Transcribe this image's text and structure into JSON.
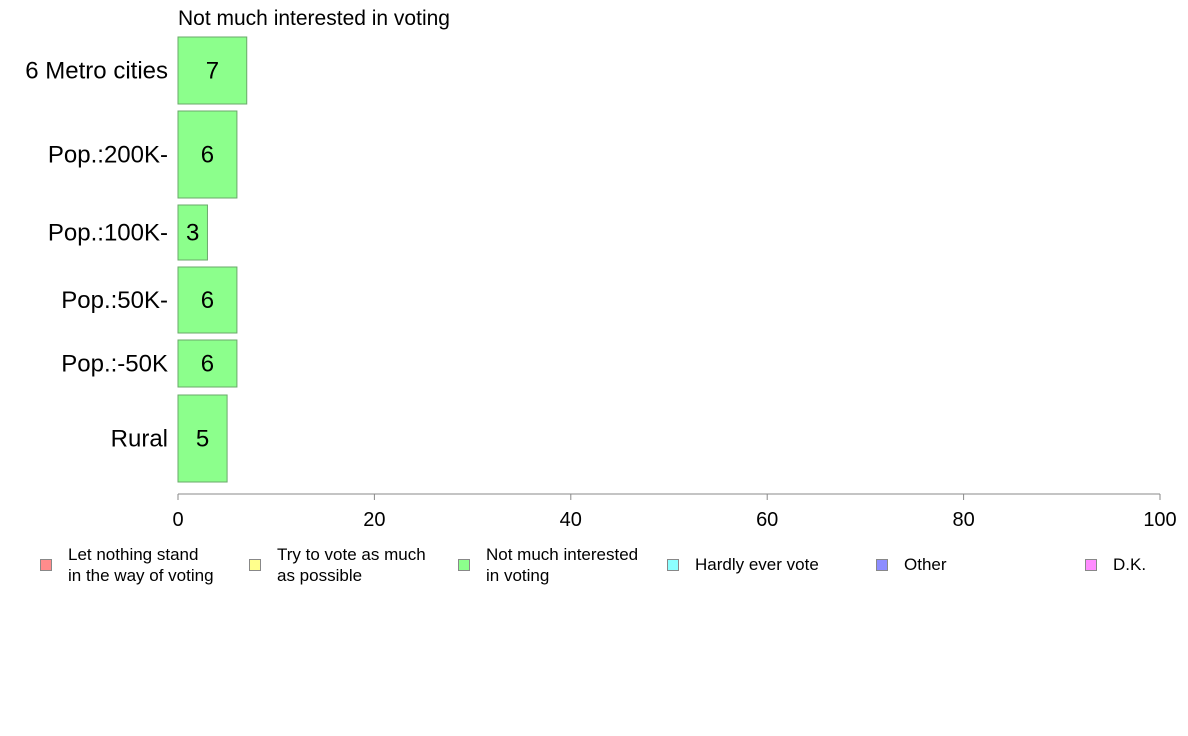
{
  "chart_data": {
    "type": "bar",
    "orientation": "horizontal",
    "title": "Not much interested in voting",
    "categories": [
      "6 Metro cities",
      "Pop.:200K-",
      "Pop.:100K-",
      "Pop.:50K-",
      "Pop.:-50K",
      "Rural"
    ],
    "values": [
      7,
      6,
      3,
      6,
      6,
      5
    ],
    "data_labels": [
      "7",
      "6",
      "3",
      "6",
      "6",
      "5"
    ],
    "xlim": [
      0,
      100
    ],
    "xticks": [
      "0",
      "20",
      "40",
      "60",
      "80",
      "100"
    ],
    "xlabel": "",
    "ylabel": "",
    "grid": false,
    "bar_color": "#8cff8c",
    "legend_position": "bottom",
    "legend": [
      {
        "label": "Let nothing stand\nin the way of voting",
        "color": "#ff8c8c"
      },
      {
        "label": "Try to vote as much\nas possible",
        "color": "#ffff8c"
      },
      {
        "label": "Not much interested\nin voting",
        "color": "#8cff8c"
      },
      {
        "label": "Hardly ever vote",
        "color": "#8cffff"
      },
      {
        "label": "Other",
        "color": "#8c8cff"
      },
      {
        "label": "D.K.",
        "color": "#ff8cff"
      }
    ]
  }
}
